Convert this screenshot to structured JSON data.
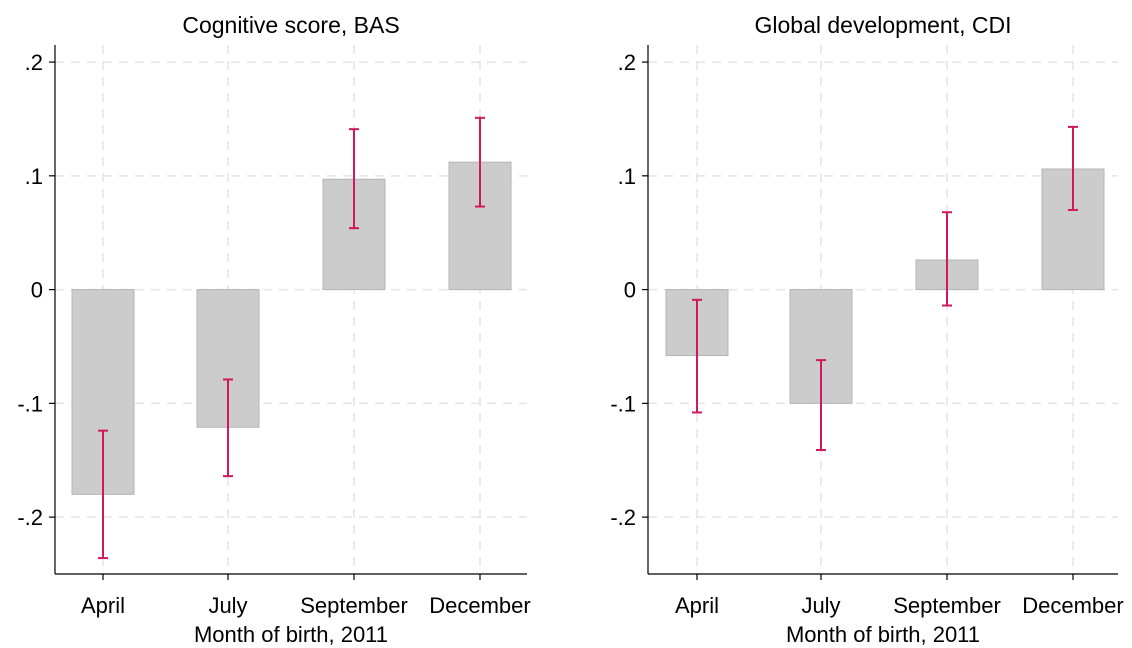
{
  "colors": {
    "bar": "#cccccc",
    "bar_edge": "#b4b4b4",
    "ci": "#d0185c",
    "grid": "#e4e4e4",
    "axis": "#000000"
  },
  "chart_data": [
    {
      "type": "bar",
      "title": "Cognitive score, BAS",
      "xlabel": "Month of birth, 2011",
      "ylabel": "",
      "categories": [
        "April",
        "July",
        "September",
        "December"
      ],
      "values": [
        -0.18,
        -0.121,
        0.097,
        0.112
      ],
      "ci_lower": [
        -0.236,
        -0.164,
        0.054,
        0.073
      ],
      "ci_upper": [
        -0.124,
        -0.079,
        0.141,
        0.151
      ],
      "yticks": [
        -0.2,
        -0.1,
        0,
        0.1,
        0.2
      ],
      "ytick_labels": [
        "-.2",
        "-.1",
        "0",
        ".1",
        ".2"
      ],
      "ylim": [
        -0.25,
        0.215
      ],
      "grid": true
    },
    {
      "type": "bar",
      "title": "Global development, CDI",
      "xlabel": "Month of birth, 2011",
      "ylabel": "",
      "categories": [
        "April",
        "July",
        "September",
        "December"
      ],
      "values": [
        -0.058,
        -0.1,
        0.026,
        0.106
      ],
      "ci_lower": [
        -0.108,
        -0.141,
        -0.014,
        0.07
      ],
      "ci_upper": [
        -0.009,
        -0.062,
        0.068,
        0.143
      ],
      "yticks": [
        -0.2,
        -0.1,
        0,
        0.1,
        0.2
      ],
      "ytick_labels": [
        "-.2",
        "-.1",
        "0",
        ".1",
        ".2"
      ],
      "ylim": [
        -0.25,
        0.215
      ],
      "grid": true
    }
  ]
}
